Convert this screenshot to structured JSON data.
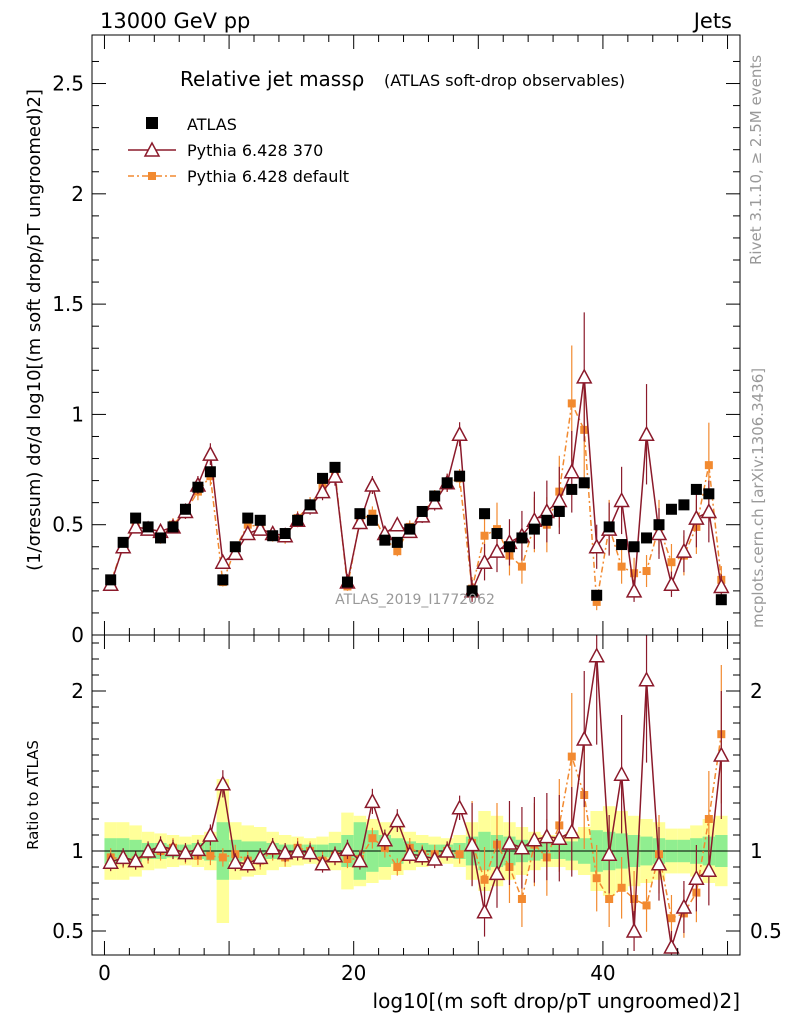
{
  "header": {
    "left": "13000 GeV pp",
    "right": "Jets"
  },
  "title": {
    "main": "Relative jet massρ",
    "sub": "(ATLAS soft-drop observables)"
  },
  "watermark": "ATLAS_2019_I1772062",
  "side_text": {
    "rivet": "Rivet 3.1.10, ≥ 2.5M events",
    "mcplots": "mcplots.cern.ch [arXiv:1306.3436]"
  },
  "axes": {
    "ylabel_top": "(1/σresum) dσ/d log10[(m soft drop/pT ungroomed)2]",
    "ylabel_bottom": "Ratio to ATLAS",
    "xlabel": "log10[(m soft drop/pT ungroomed)2]"
  },
  "legend": [
    {
      "label": "ATLAS",
      "color": "#000000"
    },
    {
      "label": "Pythia 6.428 370",
      "color": "#8b1a2b"
    },
    {
      "label": "Pythia 6.428 default",
      "color": "#f28a30"
    }
  ],
  "chart_data": [
    {
      "type": "line",
      "panel": "main",
      "xlim": [
        -1,
        51
      ],
      "ylim": [
        0,
        2.72
      ],
      "yticks": [
        0,
        0.5,
        1,
        1.5,
        2,
        2.5
      ],
      "x": [
        0.5,
        1.5,
        2.5,
        3.5,
        4.5,
        5.5,
        6.5,
        7.5,
        8.5,
        9.5,
        10.5,
        11.5,
        12.5,
        13.5,
        14.5,
        15.5,
        16.5,
        17.5,
        18.5,
        19.5,
        20.5,
        21.5,
        22.5,
        23.5,
        24.5,
        25.5,
        26.5,
        27.5,
        28.5,
        29.5,
        30.5,
        31.5,
        32.5,
        33.5,
        34.5,
        35.5,
        36.5,
        37.5,
        38.5,
        39.5,
        40.5,
        41.5,
        42.5,
        43.5,
        44.5,
        45.5,
        46.5,
        47.5,
        48.5,
        49.5
      ],
      "series": [
        {
          "name": "ATLAS",
          "color": "#000000",
          "values": [
            0.25,
            0.42,
            0.53,
            0.49,
            0.44,
            0.49,
            0.57,
            0.67,
            0.74,
            0.25,
            0.4,
            0.53,
            0.52,
            0.45,
            0.46,
            0.52,
            0.59,
            0.71,
            0.76,
            0.24,
            0.55,
            0.52,
            0.43,
            0.42,
            0.48,
            0.56,
            0.63,
            0.69,
            0.72,
            0.2,
            0.55,
            0.46,
            0.4,
            0.44,
            0.48,
            0.52,
            0.56,
            0.66,
            0.69,
            0.18,
            0.49,
            0.41,
            0.4,
            0.44,
            0.5,
            0.57,
            0.59,
            0.66,
            0.64,
            0.16
          ]
        },
        {
          "name": "Pythia 6.428 370",
          "color": "#8b1a2b",
          "values": [
            0.23,
            0.4,
            0.49,
            0.48,
            0.47,
            0.49,
            0.56,
            0.68,
            0.82,
            0.33,
            0.37,
            0.46,
            0.48,
            0.46,
            0.45,
            0.52,
            0.58,
            0.65,
            0.72,
            0.24,
            0.51,
            0.68,
            0.46,
            0.5,
            0.47,
            0.54,
            0.6,
            0.69,
            0.91,
            0.2,
            0.33,
            0.38,
            0.42,
            0.45,
            0.52,
            0.56,
            0.61,
            0.74,
            1.17,
            0.4,
            0.48,
            0.61,
            0.2,
            0.91,
            0.46,
            0.23,
            0.38,
            0.53,
            0.56,
            0.22
          ]
        },
        {
          "name": "Pythia 6.428 default",
          "color": "#f28a30",
          "values": [
            0.24,
            0.4,
            0.5,
            0.48,
            0.44,
            0.5,
            0.56,
            0.65,
            0.72,
            0.24,
            0.39,
            0.5,
            0.49,
            0.45,
            0.44,
            0.53,
            0.59,
            0.67,
            0.74,
            0.22,
            0.52,
            0.55,
            0.44,
            0.38,
            0.49,
            0.55,
            0.62,
            0.69,
            0.71,
            0.21,
            0.45,
            0.48,
            0.36,
            0.31,
            0.5,
            0.5,
            0.65,
            1.05,
            0.93,
            0.15,
            0.49,
            0.31,
            0.28,
            0.29,
            0.49,
            0.33,
            0.36,
            0.49,
            0.77,
            0.25
          ]
        }
      ]
    },
    {
      "type": "line",
      "panel": "ratio",
      "xlim": [
        -1,
        51
      ],
      "ylim": [
        0.35,
        2.35
      ],
      "yticks": [
        0.5,
        1,
        2
      ],
      "xticks": [
        0,
        20,
        40
      ],
      "x": [
        0.5,
        1.5,
        2.5,
        3.5,
        4.5,
        5.5,
        6.5,
        7.5,
        8.5,
        9.5,
        10.5,
        11.5,
        12.5,
        13.5,
        14.5,
        15.5,
        16.5,
        17.5,
        18.5,
        19.5,
        20.5,
        21.5,
        22.5,
        23.5,
        24.5,
        25.5,
        26.5,
        27.5,
        28.5,
        29.5,
        30.5,
        31.5,
        32.5,
        33.5,
        34.5,
        35.5,
        36.5,
        37.5,
        38.5,
        39.5,
        40.5,
        41.5,
        42.5,
        43.5,
        44.5,
        45.5,
        46.5,
        47.5,
        48.5,
        49.5
      ],
      "series": [
        {
          "name": "Pythia 6.428 370 / ATLAS",
          "color": "#8b1a2b",
          "values": [
            0.93,
            0.96,
            0.94,
            1.0,
            1.03,
            1.01,
            0.99,
            1.01,
            1.1,
            1.42,
            0.93,
            0.92,
            0.96,
            1.02,
            0.99,
            1.0,
            0.99,
            0.92,
            0.97,
            1.01,
            0.94,
            1.31,
            1.07,
            1.19,
            0.98,
            0.97,
            0.95,
            1.0,
            1.27,
            1.04,
            0.62,
            0.86,
            1.05,
            1.02,
            1.07,
            1.09,
            1.08,
            1.12,
            1.7,
            2.22,
            0.98,
            1.48,
            0.5,
            2.07,
            0.92,
            0.4,
            0.65,
            0.83,
            0.88,
            1.6
          ]
        },
        {
          "name": "Pythia 6.428 default / ATLAS",
          "color": "#f28a30",
          "values": [
            0.96,
            0.95,
            0.94,
            0.98,
            1.0,
            1.02,
            0.98,
            0.97,
            0.97,
            0.96,
            0.98,
            0.94,
            0.94,
            1.0,
            0.96,
            1.02,
            1.0,
            0.94,
            0.97,
            0.95,
            0.95,
            1.08,
            1.02,
            0.9,
            1.02,
            0.98,
            0.98,
            1.0,
            0.98,
            1.05,
            0.82,
            1.04,
            0.9,
            0.7,
            1.04,
            0.96,
            1.16,
            1.59,
            1.35,
            0.83,
            0.7,
            0.77,
            0.7,
            0.66,
            0.98,
            0.58,
            0.61,
            0.74,
            1.2,
            1.73
          ]
        }
      ],
      "band_outer": [
        0.18,
        0.18,
        0.16,
        0.12,
        0.11,
        0.1,
        0.09,
        0.1,
        0.12,
        0.45,
        0.18,
        0.16,
        0.15,
        0.12,
        0.1,
        0.09,
        0.08,
        0.09,
        0.12,
        0.24,
        0.22,
        0.2,
        0.18,
        0.15,
        0.12,
        0.1,
        0.09,
        0.08,
        0.1,
        0.18,
        0.25,
        0.22,
        0.18,
        0.15,
        0.12,
        0.1,
        0.1,
        0.12,
        0.15,
        0.25,
        0.28,
        0.25,
        0.22,
        0.2,
        0.18,
        0.14,
        0.14,
        0.16,
        0.2,
        0.22
      ],
      "band_inner": [
        0.08,
        0.08,
        0.07,
        0.05,
        0.05,
        0.04,
        0.04,
        0.05,
        0.06,
        0.18,
        0.07,
        0.06,
        0.06,
        0.05,
        0.04,
        0.04,
        0.04,
        0.04,
        0.05,
        0.1,
        0.18,
        0.13,
        0.1,
        0.08,
        0.06,
        0.05,
        0.04,
        0.04,
        0.05,
        0.09,
        0.12,
        0.1,
        0.09,
        0.07,
        0.06,
        0.05,
        0.05,
        0.06,
        0.08,
        0.13,
        0.12,
        0.11,
        0.1,
        0.09,
        0.08,
        0.07,
        0.07,
        0.08,
        0.09,
        0.1
      ]
    }
  ]
}
